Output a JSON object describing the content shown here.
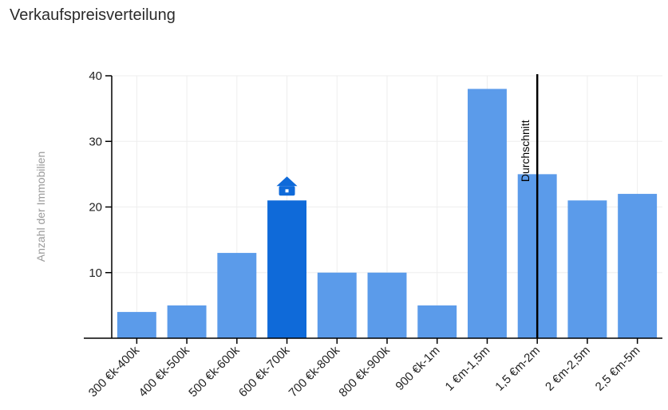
{
  "title": "Verkaufspreisverteilung",
  "chart_data": {
    "type": "bar",
    "title": "",
    "xlabel": "",
    "ylabel": "Anzahl der Immobilien",
    "ylim": [
      0,
      40
    ],
    "yticks": [
      10,
      20,
      30,
      40
    ],
    "grid": true,
    "categories": [
      "300 €k-400k",
      "400 €k-500k",
      "500 €k-600k",
      "600 €k-700k",
      "700 €k-800k",
      "800 €k-900k",
      "900 €k-1m",
      "1 €m-1,5m",
      "1,5 €m-2m",
      "2 €m-2,5m",
      "2,5 €m-5m"
    ],
    "values": [
      4,
      5,
      13,
      21,
      10,
      10,
      5,
      38,
      25,
      21,
      22
    ],
    "highlight_category": "600 €k-700k",
    "highlight_icon": "house-icon",
    "average_marker": {
      "label": "Durchschnitt",
      "category": "1,5 €m-2m"
    },
    "colors": {
      "bar": "#5b9bea",
      "bar_highlight": "#0f6ad9",
      "average_line": "#000000",
      "grid": "#eeeeee",
      "axis": "#000000"
    }
  }
}
